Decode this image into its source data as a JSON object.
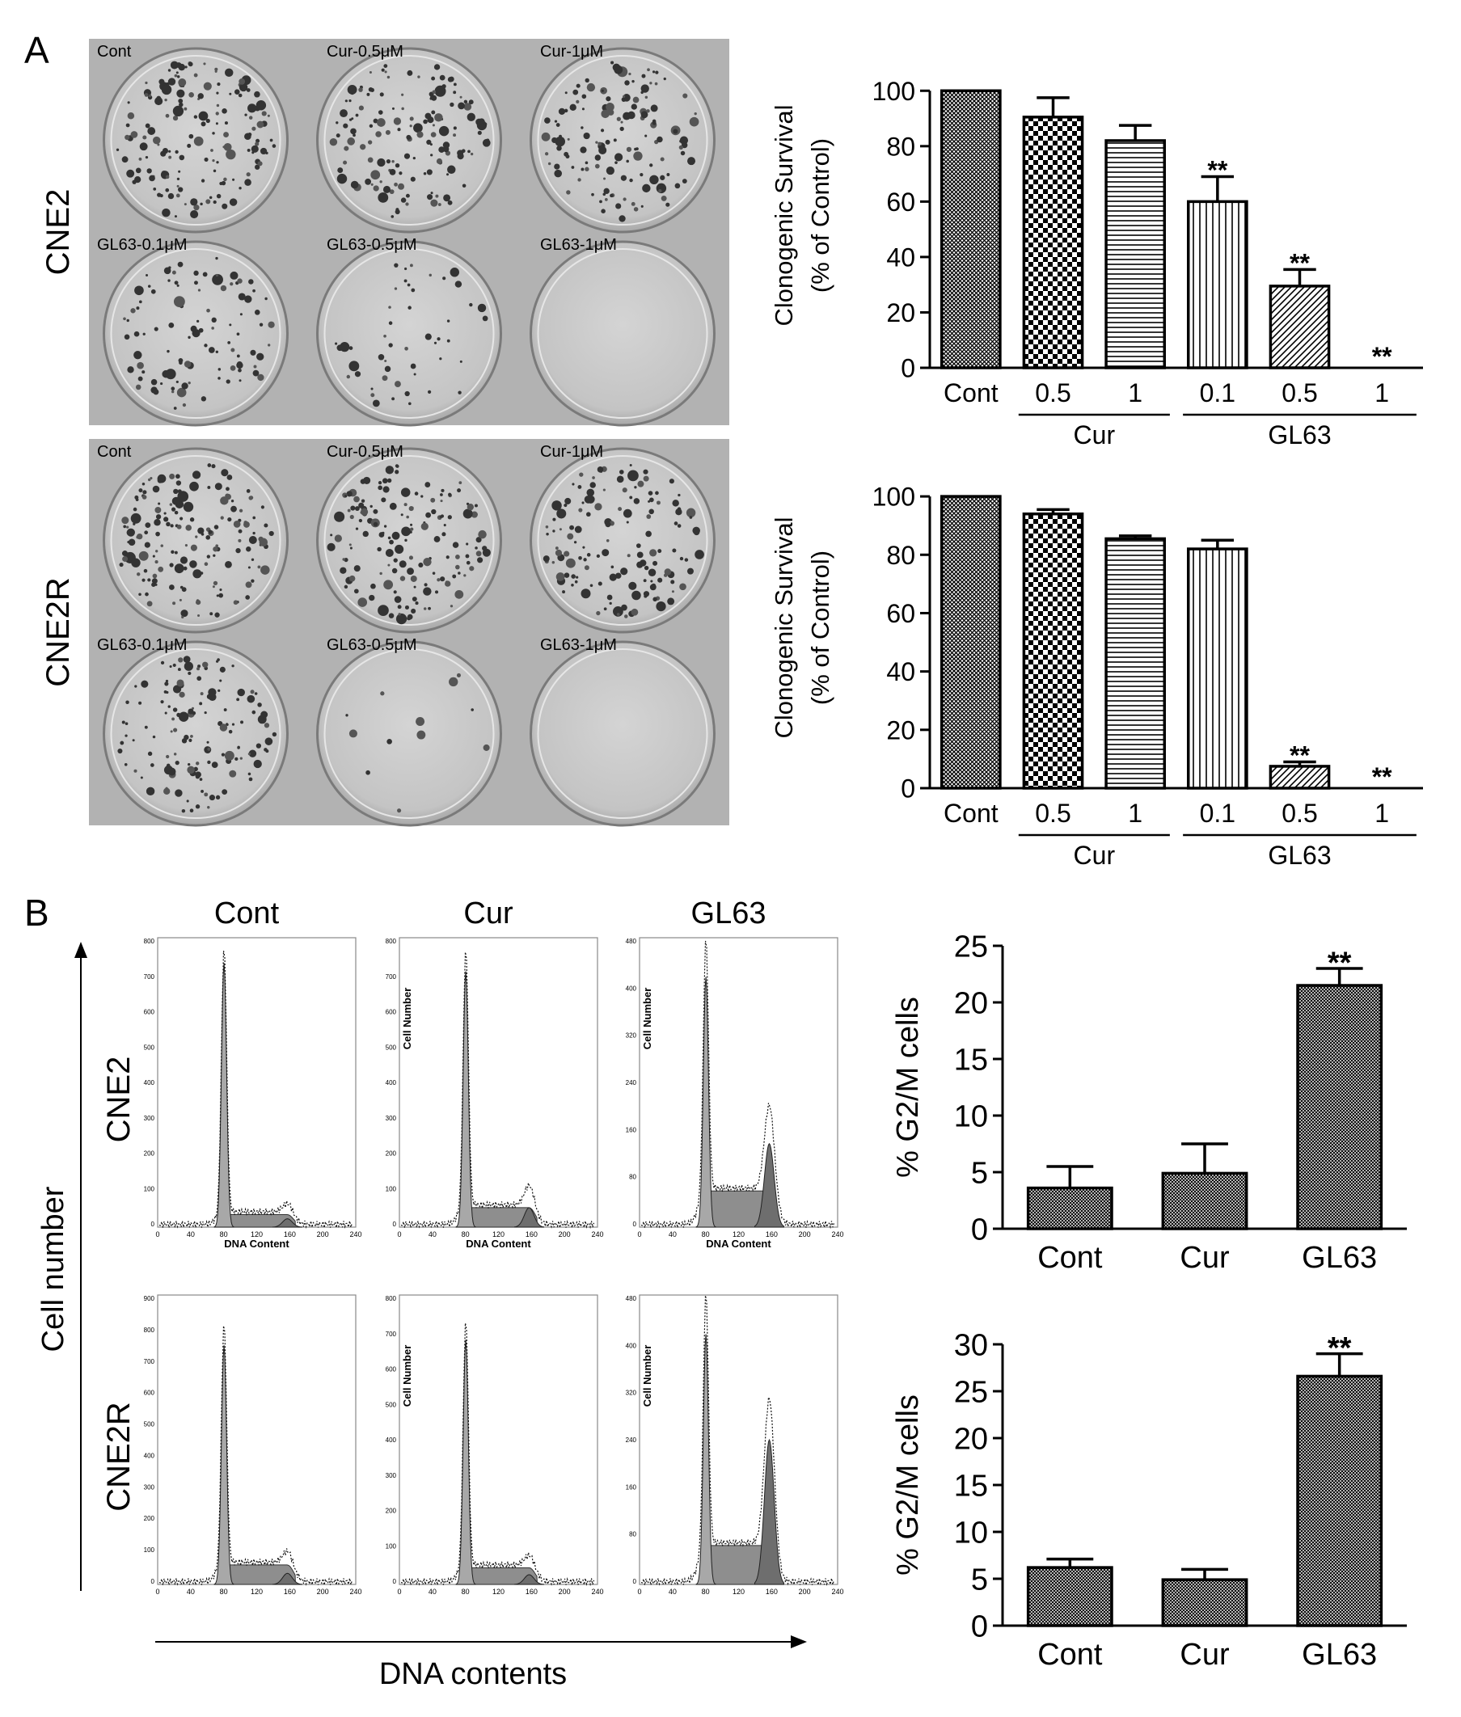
{
  "panels": {
    "A": "A",
    "B": "B"
  },
  "photos": {
    "rows": [
      {
        "cell_line": "CNE2",
        "wells": [
          {
            "label": "Cont",
            "density": 1.0
          },
          {
            "label": "Cur-0.5μM",
            "density": 0.9
          },
          {
            "label": "Cur-1μM",
            "density": 0.82
          },
          {
            "label": "GL63-0.1μM",
            "density": 0.6
          },
          {
            "label": "GL63-0.5μM",
            "density": 0.29
          },
          {
            "label": "GL63-1μM",
            "density": 0.0
          }
        ]
      },
      {
        "cell_line": "CNE2R",
        "wells": [
          {
            "label": "Cont",
            "density": 1.0
          },
          {
            "label": "Cur-0.5μM",
            "density": 0.94
          },
          {
            "label": "Cur-1μM",
            "density": 0.85
          },
          {
            "label": "GL63-0.1μM",
            "density": 0.82
          },
          {
            "label": "GL63-0.5μM",
            "density": 0.07
          },
          {
            "label": "GL63-1μM",
            "density": 0.0
          }
        ]
      }
    ]
  },
  "flow": {
    "columns": [
      "Cont",
      "Cur",
      "GL63"
    ],
    "rows": [
      {
        "cell_line": "CNE2"
      },
      {
        "cell_line": "CNE2R"
      }
    ],
    "y_axis_label": "Cell number",
    "x_axis_label": "DNA contents",
    "inner_x_label": "DNA Content",
    "inner_y_label": "Cell Number",
    "inner_x_ticks": [
      "0",
      "40",
      "80",
      "120",
      "160",
      "200",
      "240"
    ],
    "inner_y_ticks": [
      [
        "800",
        "700",
        "600",
        "500",
        "400",
        "300",
        "200",
        "100",
        "0"
      ],
      [
        "800",
        "700",
        "600",
        "500",
        "400",
        "300",
        "200",
        "100",
        "0"
      ],
      [
        "480",
        "400",
        "320",
        "240",
        "160",
        "80",
        "0"
      ],
      [
        "900",
        "800",
        "700",
        "600",
        "500",
        "400",
        "300",
        "200",
        "100",
        "0"
      ],
      [
        "800",
        "700",
        "600",
        "500",
        "400",
        "300",
        "200",
        "100",
        "0"
      ],
      [
        "480",
        "400",
        "320",
        "240",
        "160",
        "80",
        "0"
      ]
    ]
  },
  "chart_data": [
    {
      "type": "bar",
      "panel": "A",
      "cell_line": "CNE2",
      "categories": [
        "Cont",
        "0.5",
        "1",
        "0.1",
        "0.5",
        "1"
      ],
      "groups": [
        {
          "label": "Cur",
          "categories": [
            1,
            2
          ]
        },
        {
          "label": "GL63",
          "categories": [
            3,
            4,
            5
          ]
        }
      ],
      "values": [
        100,
        90.5,
        82,
        60,
        29.5,
        0
      ],
      "errors": [
        0,
        7,
        5.5,
        9,
        6,
        0
      ],
      "significance": [
        "",
        "",
        "",
        "**",
        "**",
        "**"
      ],
      "patterns": [
        "crosshatch",
        "checker",
        "hstripe",
        "vstripe",
        "diag",
        "none"
      ],
      "ylabel": "Clonogenic Survival",
      "ylabel2": "(% of Control)",
      "ylim": [
        0,
        110
      ],
      "yticks": [
        0,
        20,
        40,
        60,
        80,
        100
      ]
    },
    {
      "type": "bar",
      "panel": "A",
      "cell_line": "CNE2R",
      "categories": [
        "Cont",
        "0.5",
        "1",
        "0.1",
        "0.5",
        "1"
      ],
      "groups": [
        {
          "label": "Cur",
          "categories": [
            1,
            2
          ]
        },
        {
          "label": "GL63",
          "categories": [
            3,
            4,
            5
          ]
        }
      ],
      "values": [
        100,
        94,
        85.5,
        82,
        7.5,
        0
      ],
      "errors": [
        0,
        1.5,
        1,
        3,
        1.5,
        0
      ],
      "significance": [
        "",
        "",
        "",
        "",
        "**",
        "**"
      ],
      "patterns": [
        "crosshatch",
        "checker",
        "hstripe",
        "vstripe",
        "diag",
        "none"
      ],
      "ylabel": "Clonogenic Survival",
      "ylabel2": "(% of Control)",
      "ylim": [
        0,
        110
      ],
      "yticks": [
        0,
        20,
        40,
        60,
        80,
        100
      ]
    },
    {
      "type": "bar",
      "panel": "B",
      "cell_line": "CNE2",
      "categories": [
        "Cont",
        "Cur",
        "GL63"
      ],
      "values": [
        3.6,
        4.9,
        21.5
      ],
      "errors": [
        1.9,
        2.6,
        1.5
      ],
      "significance": [
        "",
        "",
        "**"
      ],
      "ylabel": "% G2/M cells",
      "ylim": [
        0,
        25
      ],
      "yticks": [
        0,
        5,
        10,
        15,
        20,
        25
      ]
    },
    {
      "type": "bar",
      "panel": "B",
      "cell_line": "CNE2R",
      "categories": [
        "Cont",
        "Cur",
        "GL63"
      ],
      "values": [
        6.2,
        4.9,
        26.6
      ],
      "errors": [
        0.9,
        1.1,
        2.4
      ],
      "significance": [
        "",
        "",
        "**"
      ],
      "ylabel": "% G2/M cells",
      "ylim": [
        0,
        30
      ],
      "yticks": [
        0,
        5,
        10,
        15,
        20,
        25,
        30
      ]
    }
  ]
}
